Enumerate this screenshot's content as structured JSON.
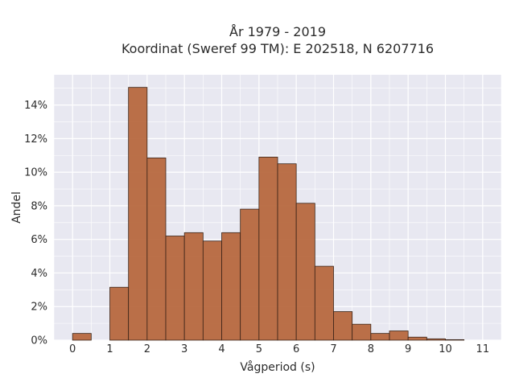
{
  "chart_data": {
    "type": "bar",
    "title_lines": [
      "År 1979 - 2019",
      "Koordinat (Sweref 99 TM): E 202518, N 6207716"
    ],
    "xlabel": "Vågperiod (s)",
    "ylabel": "Andel",
    "bin_width": 0.5,
    "bins": [
      {
        "x0": 0.0,
        "value": 0.4
      },
      {
        "x0": 0.5,
        "value": 0.0
      },
      {
        "x0": 1.0,
        "value": 3.15
      },
      {
        "x0": 1.5,
        "value": 15.05
      },
      {
        "x0": 2.0,
        "value": 10.85
      },
      {
        "x0": 2.5,
        "value": 6.2
      },
      {
        "x0": 3.0,
        "value": 6.4
      },
      {
        "x0": 3.5,
        "value": 5.9
      },
      {
        "x0": 4.0,
        "value": 6.4
      },
      {
        "x0": 4.5,
        "value": 7.8
      },
      {
        "x0": 5.0,
        "value": 10.9
      },
      {
        "x0": 5.5,
        "value": 10.5
      },
      {
        "x0": 6.0,
        "value": 8.15
      },
      {
        "x0": 6.5,
        "value": 4.4
      },
      {
        "x0": 7.0,
        "value": 1.7
      },
      {
        "x0": 7.5,
        "value": 0.95
      },
      {
        "x0": 8.0,
        "value": 0.4
      },
      {
        "x0": 8.5,
        "value": 0.55
      },
      {
        "x0": 9.0,
        "value": 0.18
      },
      {
        "x0": 9.5,
        "value": 0.08
      },
      {
        "x0": 10.0,
        "value": 0.03
      }
    ],
    "x_ticks": [
      "0",
      "1",
      "2",
      "3",
      "4",
      "5",
      "6",
      "7",
      "8",
      "9",
      "10",
      "11"
    ],
    "y_ticks": [
      "0%",
      "2%",
      "4%",
      "6%",
      "8%",
      "10%",
      "12%",
      "14%"
    ],
    "xlim": [
      -0.5,
      11.5
    ],
    "ylim": [
      0,
      15.8
    ],
    "bar_color": "#b5643a",
    "bar_edge_color": "#3a2418",
    "plot_bg": "#e8e8f1",
    "grid": true
  }
}
